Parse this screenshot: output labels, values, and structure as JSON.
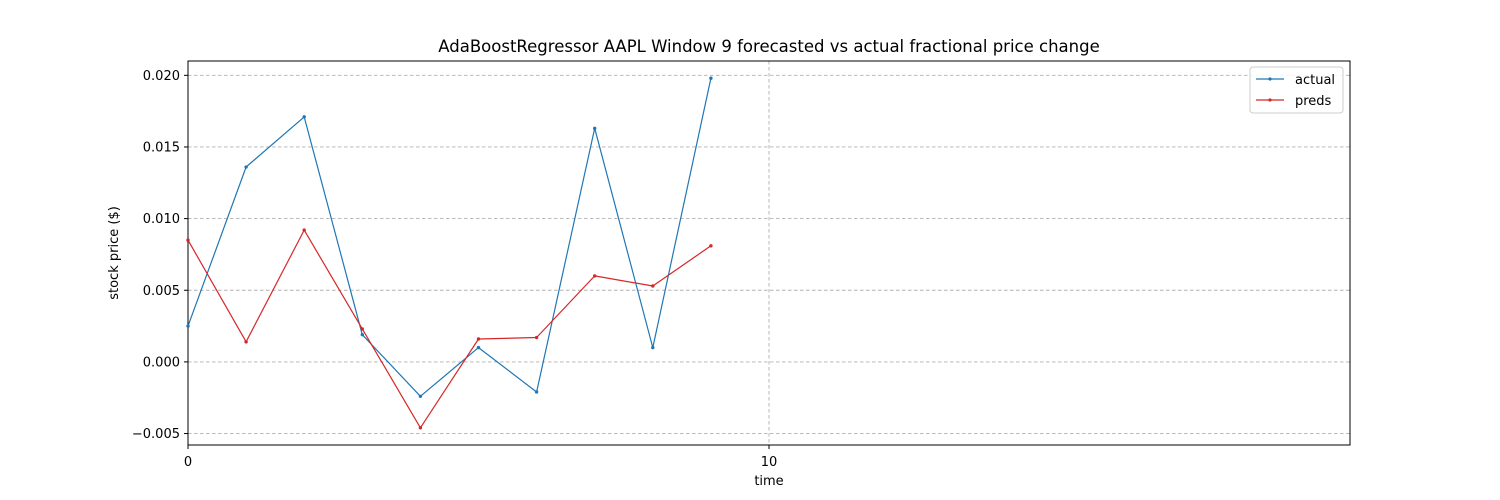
{
  "chart_data": {
    "type": "line",
    "title": "AdaBoostRegressor AAPL Window 9 forecasted vs actual fractional price change",
    "xlabel": "time",
    "ylabel": "stock price ($)",
    "xlim": [
      0,
      20
    ],
    "ylim": [
      -0.0058,
      0.021
    ],
    "xticks": [
      0,
      10
    ],
    "xtick_labels": [
      "0",
      "10"
    ],
    "yticks": [
      -0.005,
      0.0,
      0.005,
      0.01,
      0.015,
      0.02
    ],
    "ytick_labels": [
      "−0.005",
      "0.000",
      "0.005",
      "0.010",
      "0.015",
      "0.020"
    ],
    "grid": true,
    "legend_position": "top-right",
    "series": [
      {
        "name": "actual",
        "color": "#1f77b4",
        "x": [
          0,
          1,
          2,
          3,
          4,
          5,
          6,
          7,
          8,
          9
        ],
        "y": [
          0.0025,
          0.0136,
          0.0171,
          0.0019,
          -0.0024,
          0.001,
          -0.0021,
          0.0163,
          0.001,
          0.0198
        ]
      },
      {
        "name": "preds",
        "color": "#d62728",
        "x": [
          0,
          1,
          2,
          3,
          4,
          5,
          6,
          7,
          8,
          9
        ],
        "y": [
          0.0085,
          0.0014,
          0.0092,
          0.0023,
          -0.0046,
          0.0016,
          0.0017,
          0.006,
          0.0053,
          0.0081
        ]
      }
    ]
  }
}
